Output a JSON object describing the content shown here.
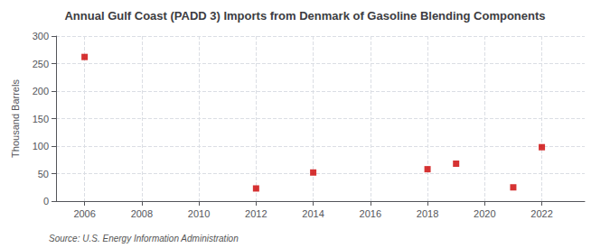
{
  "chart_data": {
    "type": "scatter",
    "title": "Annual Gulf Coast (PADD 3) Imports from Denmark of Gasoline Blending Components",
    "ylabel": "Thousand Barrels",
    "annotation": "Source: U.S. Energy Information Administration",
    "x": [
      2006,
      2012,
      2014,
      2018,
      2019,
      2021,
      2022
    ],
    "values": [
      262,
      23,
      52,
      58,
      68,
      25,
      98
    ],
    "color": "#cc0000",
    "marker": "square",
    "xlim": [
      2005.0,
      2023.5
    ],
    "xticks": [
      2006,
      2008,
      2010,
      2012,
      2014,
      2016,
      2018,
      2020,
      2022
    ],
    "ylim": [
      0,
      300
    ],
    "yticks": [
      0,
      50,
      100,
      150,
      200,
      250,
      300
    ],
    "grid": true
  }
}
